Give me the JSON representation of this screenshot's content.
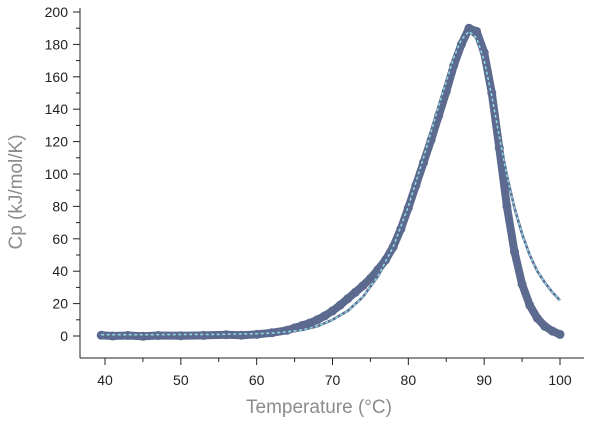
{
  "chart_data": {
    "type": "scatter",
    "title": "",
    "xlabel": "Temperature (°C)",
    "ylabel": "Cp (kJ/mol/K)",
    "xlim": [
      40,
      100
    ],
    "ylim": [
      0,
      200
    ],
    "xticks": [
      40,
      50,
      60,
      70,
      80,
      90,
      100
    ],
    "yticks": [
      0,
      20,
      40,
      60,
      80,
      100,
      120,
      140,
      160,
      180,
      200
    ],
    "grid": false,
    "legend": "none",
    "series": [
      {
        "kind": "measured",
        "style": "thick-markers",
        "color": "#5b6a8e",
        "x": [
          39.5,
          41,
          43,
          45,
          47,
          50,
          53,
          56,
          58,
          60,
          62,
          64,
          65,
          66,
          67,
          68,
          69,
          70,
          71,
          72,
          73,
          74,
          75,
          76,
          77,
          78,
          79,
          80,
          81,
          82,
          83,
          84,
          85,
          86,
          87,
          88,
          89,
          90,
          91,
          92,
          93,
          94,
          95,
          96,
          97,
          98,
          99,
          100
        ],
        "y": [
          0.5,
          0,
          0.3,
          -0.2,
          0.3,
          0.2,
          0.4,
          0.8,
          0.5,
          1,
          2,
          3.5,
          5,
          6.5,
          8,
          10,
          12.5,
          15.5,
          19,
          23,
          27,
          31,
          35.5,
          41,
          47,
          55,
          66,
          79,
          93,
          107,
          121,
          136,
          151,
          167,
          180,
          190,
          188,
          175,
          150,
          116,
          80,
          52,
          32,
          19,
          11,
          6,
          3,
          1
        ]
      },
      {
        "kind": "fit",
        "style": "dashed",
        "color": "#8fd6e3",
        "x": [
          39.5,
          45,
          50,
          55,
          60,
          62,
          64,
          66,
          68,
          70,
          72,
          74,
          76,
          78,
          80,
          82,
          84,
          86,
          87,
          88,
          89,
          90,
          91,
          92,
          93,
          94,
          95,
          96,
          97,
          98,
          99,
          100
        ],
        "y": [
          0.8,
          0.8,
          0.9,
          1,
          1.4,
          1.8,
          2.5,
          3.8,
          6,
          10,
          15.5,
          24,
          37,
          55,
          80,
          110,
          142,
          172,
          183,
          188,
          184,
          170,
          148,
          123,
          99,
          79,
          63,
          50,
          40,
          33,
          27,
          22
        ]
      }
    ]
  }
}
